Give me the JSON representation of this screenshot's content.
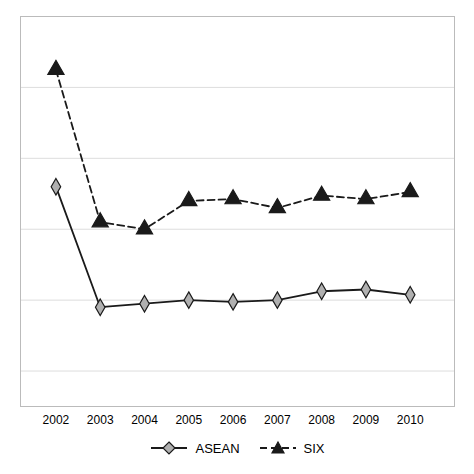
{
  "chart_data": {
    "type": "line",
    "x": [
      2002,
      2003,
      2004,
      2005,
      2006,
      2007,
      2008,
      2009,
      2010
    ],
    "series": [
      {
        "name": "ASEAN",
        "color": "#1a1a1a",
        "marker": "diamond",
        "line_style": "solid",
        "values": [
          0.72,
          0.38,
          0.39,
          0.4,
          0.395,
          0.4,
          0.425,
          0.43,
          0.415
        ]
      },
      {
        "name": "SIX",
        "color": "#1a1a1a",
        "marker": "triangle",
        "line_style": "dashed",
        "values": [
          1.05,
          0.62,
          0.6,
          0.68,
          0.685,
          0.66,
          0.695,
          0.685,
          0.705
        ]
      }
    ],
    "xlim": [
      2001.2,
      2011.0
    ],
    "xticks": [
      2002,
      2003,
      2004,
      2005,
      2006,
      2007,
      2008,
      2009,
      2010
    ],
    "ylim": [
      0.1,
      1.2
    ],
    "yticks": [
      0.2,
      0.4,
      0.6,
      0.8,
      1.0
    ],
    "grid": true,
    "tick_labels": "x",
    "legend": "bottom"
  }
}
